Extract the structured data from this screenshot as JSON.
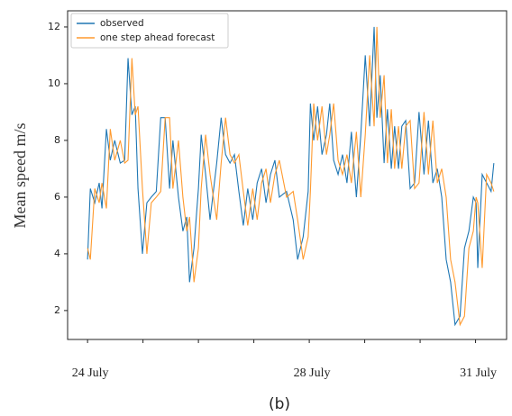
{
  "chart_data": {
    "type": "line",
    "ylabel": "Mean speed m/s",
    "caption": "(b)",
    "legend": "upper left",
    "xlim": [
      23.64,
      31.56
    ],
    "ylim": [
      0.98,
      12.57
    ],
    "xticks": [
      {
        "value": 24,
        "label": "24 July"
      },
      {
        "value": 25,
        "label": null
      },
      {
        "value": 26,
        "label": null
      },
      {
        "value": 27,
        "label": null
      },
      {
        "value": 28,
        "label": "28 July"
      },
      {
        "value": 29,
        "label": null
      },
      {
        "value": 30,
        "label": null
      },
      {
        "value": 31,
        "label": "31 July"
      }
    ],
    "yticks": [
      2,
      4,
      6,
      8,
      10,
      12
    ],
    "x": [
      24.0,
      24.05,
      24.13,
      24.21,
      24.26,
      24.34,
      24.41,
      24.49,
      24.59,
      24.67,
      24.73,
      24.8,
      24.86,
      24.91,
      24.99,
      25.07,
      25.15,
      25.24,
      25.32,
      25.4,
      25.48,
      25.54,
      25.64,
      25.72,
      25.79,
      25.84,
      25.92,
      26.0,
      26.05,
      26.13,
      26.21,
      26.33,
      26.41,
      26.49,
      26.57,
      26.65,
      26.73,
      26.81,
      26.89,
      26.98,
      27.06,
      27.14,
      27.22,
      27.3,
      27.38,
      27.46,
      27.59,
      27.71,
      27.79,
      27.89,
      27.98,
      28.02,
      28.08,
      28.15,
      28.23,
      28.31,
      28.37,
      28.44,
      28.52,
      28.6,
      28.68,
      28.76,
      28.85,
      28.93,
      29.01,
      29.09,
      29.17,
      29.22,
      29.28,
      29.35,
      29.41,
      29.48,
      29.54,
      29.61,
      29.67,
      29.74,
      29.82,
      29.9,
      29.98,
      30.07,
      30.15,
      30.23,
      30.31,
      30.39,
      30.47,
      30.55,
      30.63,
      30.72,
      30.8,
      30.88,
      30.96,
      31.01,
      31.04,
      31.12,
      31.2,
      31.28,
      31.33
    ],
    "series": [
      {
        "name": "observed",
        "color": "#1f77b4",
        "values": [
          3.8,
          6.3,
          5.8,
          6.5,
          5.6,
          8.4,
          7.3,
          8.0,
          7.2,
          7.3,
          10.9,
          8.9,
          9.2,
          6.3,
          4.0,
          5.8,
          6.0,
          6.2,
          8.8,
          8.8,
          6.3,
          8.0,
          6.0,
          4.8,
          5.3,
          3.0,
          4.2,
          6.3,
          8.2,
          6.8,
          5.2,
          7.2,
          8.8,
          7.5,
          7.2,
          7.5,
          6.2,
          5.0,
          6.3,
          5.2,
          6.5,
          7.0,
          5.8,
          6.8,
          7.3,
          6.0,
          6.2,
          5.2,
          3.8,
          4.6,
          6.2,
          9.3,
          8.0,
          9.2,
          7.5,
          8.2,
          9.3,
          7.3,
          6.8,
          7.5,
          6.5,
          8.3,
          6.0,
          8.2,
          11.0,
          8.5,
          12.0,
          8.8,
          10.3,
          7.2,
          9.1,
          7.0,
          8.5,
          7.0,
          8.5,
          8.7,
          6.3,
          6.5,
          9.0,
          6.8,
          8.7,
          6.5,
          7.0,
          6.0,
          3.8,
          3.0,
          1.5,
          1.8,
          4.2,
          4.8,
          6.0,
          5.8,
          3.5,
          6.8,
          6.5,
          6.2,
          7.2
        ]
      },
      {
        "name": "one step ahead forecast",
        "color": "#ff9a2e",
        "values": [
          4.2,
          3.8,
          6.3,
          5.8,
          6.5,
          5.6,
          8.4,
          7.3,
          8.0,
          7.2,
          7.3,
          10.9,
          8.9,
          9.2,
          6.3,
          4.0,
          5.8,
          6.0,
          6.2,
          8.8,
          8.8,
          6.3,
          8.0,
          6.0,
          4.8,
          5.3,
          3.0,
          4.2,
          6.3,
          8.2,
          6.8,
          5.2,
          7.2,
          8.8,
          7.5,
          7.2,
          7.5,
          6.2,
          5.0,
          6.3,
          5.2,
          6.5,
          7.0,
          5.8,
          6.8,
          7.3,
          6.0,
          6.2,
          5.2,
          3.8,
          4.6,
          6.2,
          9.3,
          8.0,
          9.2,
          7.5,
          8.2,
          9.3,
          7.3,
          6.8,
          7.5,
          6.5,
          8.3,
          6.0,
          8.2,
          11.0,
          8.5,
          12.0,
          8.8,
          10.3,
          7.2,
          9.1,
          7.0,
          8.5,
          7.0,
          8.5,
          8.7,
          6.3,
          6.5,
          9.0,
          6.8,
          8.7,
          6.5,
          7.0,
          6.0,
          3.8,
          3.0,
          1.5,
          1.8,
          4.2,
          4.8,
          6.0,
          5.8,
          3.5,
          6.8,
          6.5,
          6.2
        ]
      }
    ]
  }
}
